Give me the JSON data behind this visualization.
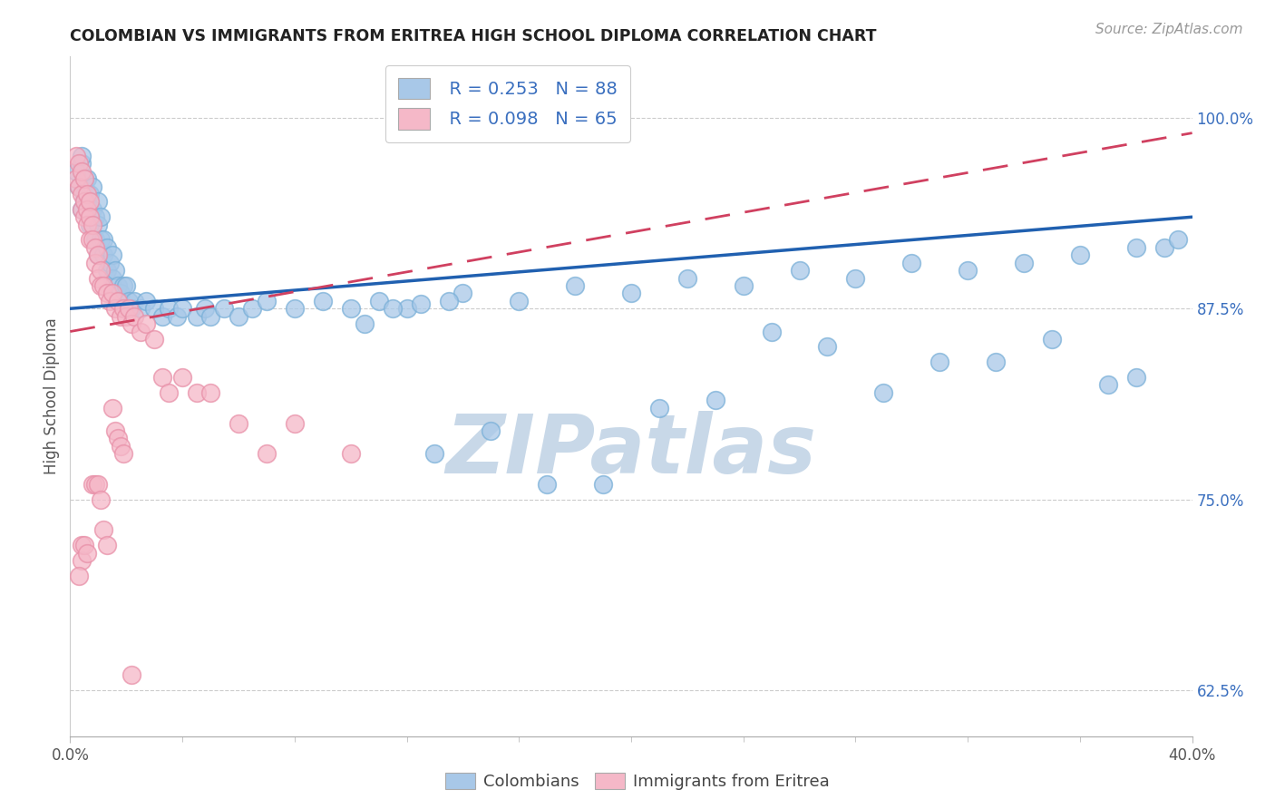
{
  "title": "COLOMBIAN VS IMMIGRANTS FROM ERITREA HIGH SCHOOL DIPLOMA CORRELATION CHART",
  "source": "Source: ZipAtlas.com",
  "ylabel": "High School Diploma",
  "ytick_vals": [
    0.625,
    0.75,
    0.875,
    1.0
  ],
  "ytick_labels": [
    "62.5%",
    "75.0%",
    "87.5%",
    "100.0%"
  ],
  "xlim": [
    0.0,
    0.4
  ],
  "ylim": [
    0.595,
    1.04
  ],
  "legend_blue_R": "0.253",
  "legend_blue_N": "88",
  "legend_pink_R": "0.098",
  "legend_pink_N": "65",
  "blue_color": "#a8c8e8",
  "blue_edge_color": "#7ab0d8",
  "pink_color": "#f5b8c8",
  "pink_edge_color": "#e890a8",
  "blue_line_color": "#2060b0",
  "pink_line_color": "#d04060",
  "watermark_text": "ZIPatlas",
  "watermark_color": "#c8d8e8",
  "blue_line_y0": 0.875,
  "blue_line_y1": 0.935,
  "pink_line_y0": 0.86,
  "pink_line_y1": 0.99,
  "blue_x": [
    0.002,
    0.003,
    0.004,
    0.004,
    0.004,
    0.005,
    0.005,
    0.005,
    0.006,
    0.006,
    0.007,
    0.007,
    0.008,
    0.008,
    0.009,
    0.009,
    0.01,
    0.01,
    0.01,
    0.011,
    0.011,
    0.012,
    0.012,
    0.013,
    0.013,
    0.014,
    0.015,
    0.015,
    0.016,
    0.017,
    0.018,
    0.019,
    0.02,
    0.021,
    0.022,
    0.023,
    0.025,
    0.027,
    0.03,
    0.033,
    0.035,
    0.038,
    0.04,
    0.045,
    0.048,
    0.05,
    0.055,
    0.06,
    0.065,
    0.07,
    0.08,
    0.09,
    0.1,
    0.11,
    0.12,
    0.14,
    0.16,
    0.18,
    0.2,
    0.22,
    0.24,
    0.26,
    0.28,
    0.3,
    0.32,
    0.34,
    0.36,
    0.38,
    0.39,
    0.395,
    0.25,
    0.27,
    0.31,
    0.33,
    0.35,
    0.15,
    0.17,
    0.19,
    0.13,
    0.21,
    0.23,
    0.29,
    0.37,
    0.38,
    0.105,
    0.115,
    0.125,
    0.135
  ],
  "blue_y": [
    0.965,
    0.955,
    0.94,
    0.97,
    0.975,
    0.96,
    0.95,
    0.945,
    0.945,
    0.96,
    0.93,
    0.95,
    0.94,
    0.955,
    0.935,
    0.92,
    0.93,
    0.91,
    0.945,
    0.92,
    0.935,
    0.91,
    0.92,
    0.915,
    0.9,
    0.905,
    0.895,
    0.91,
    0.9,
    0.89,
    0.885,
    0.89,
    0.89,
    0.88,
    0.875,
    0.88,
    0.875,
    0.88,
    0.875,
    0.87,
    0.875,
    0.87,
    0.875,
    0.87,
    0.875,
    0.87,
    0.875,
    0.87,
    0.875,
    0.88,
    0.875,
    0.88,
    0.875,
    0.88,
    0.875,
    0.885,
    0.88,
    0.89,
    0.885,
    0.895,
    0.89,
    0.9,
    0.895,
    0.905,
    0.9,
    0.905,
    0.91,
    0.915,
    0.915,
    0.92,
    0.86,
    0.85,
    0.84,
    0.84,
    0.855,
    0.795,
    0.76,
    0.76,
    0.78,
    0.81,
    0.815,
    0.82,
    0.825,
    0.83,
    0.865,
    0.875,
    0.878,
    0.88
  ],
  "pink_x": [
    0.002,
    0.002,
    0.003,
    0.003,
    0.004,
    0.004,
    0.004,
    0.005,
    0.005,
    0.005,
    0.006,
    0.006,
    0.006,
    0.007,
    0.007,
    0.007,
    0.008,
    0.008,
    0.009,
    0.009,
    0.01,
    0.01,
    0.011,
    0.011,
    0.012,
    0.013,
    0.014,
    0.015,
    0.016,
    0.017,
    0.018,
    0.019,
    0.02,
    0.021,
    0.022,
    0.023,
    0.025,
    0.027,
    0.03,
    0.033,
    0.035,
    0.04,
    0.045,
    0.05,
    0.06,
    0.07,
    0.08,
    0.1,
    0.015,
    0.016,
    0.017,
    0.018,
    0.019,
    0.008,
    0.009,
    0.01,
    0.011,
    0.012,
    0.013,
    0.004,
    0.004,
    0.005,
    0.006,
    0.003,
    0.022
  ],
  "pink_y": [
    0.975,
    0.96,
    0.97,
    0.955,
    0.965,
    0.95,
    0.94,
    0.96,
    0.945,
    0.935,
    0.95,
    0.94,
    0.93,
    0.945,
    0.935,
    0.92,
    0.93,
    0.92,
    0.915,
    0.905,
    0.91,
    0.895,
    0.9,
    0.89,
    0.89,
    0.885,
    0.88,
    0.885,
    0.875,
    0.88,
    0.87,
    0.875,
    0.87,
    0.875,
    0.865,
    0.87,
    0.86,
    0.865,
    0.855,
    0.83,
    0.82,
    0.83,
    0.82,
    0.82,
    0.8,
    0.78,
    0.8,
    0.78,
    0.81,
    0.795,
    0.79,
    0.785,
    0.78,
    0.76,
    0.76,
    0.76,
    0.75,
    0.73,
    0.72,
    0.72,
    0.71,
    0.72,
    0.715,
    0.7,
    0.635
  ]
}
